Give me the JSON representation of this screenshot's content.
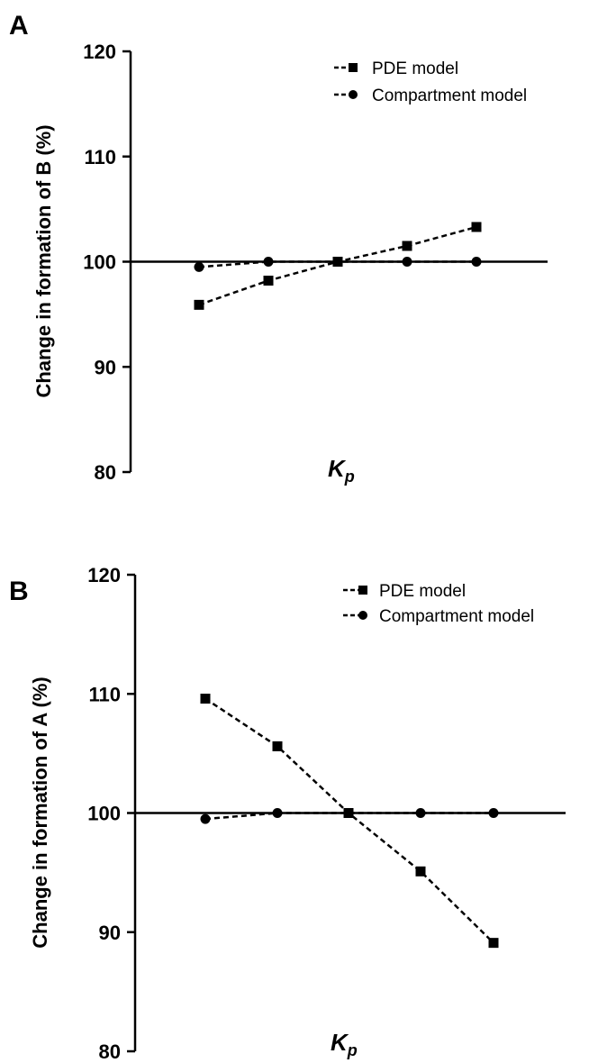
{
  "chart_data": [
    {
      "panel": "A",
      "type": "line",
      "ylabel": "Change in formation of B (%)",
      "xlabel_main": "K",
      "xlabel_sub": "p",
      "ylim": [
        80,
        120
      ],
      "yticks": [
        "80",
        "90",
        "100",
        "110",
        "120"
      ],
      "reference_line": 100,
      "legend_position": "top-right",
      "series": [
        {
          "name": "PDE model",
          "marker": "square",
          "values": [
            95.9,
            98.2,
            100.0,
            101.5,
            103.3
          ]
        },
        {
          "name": "Compartment model",
          "marker": "circle",
          "values": [
            99.5,
            100.0,
            100.0,
            100.0,
            100.0
          ]
        }
      ]
    },
    {
      "panel": "B",
      "type": "line",
      "ylabel": "Change in formation of A (%)",
      "xlabel_main": "K",
      "xlabel_sub": "p",
      "ylim": [
        80,
        120
      ],
      "yticks": [
        "80",
        "90",
        "100",
        "110",
        "120"
      ],
      "reference_line": 100,
      "legend_position": "top-right",
      "series": [
        {
          "name": "PDE model",
          "marker": "square",
          "values": [
            109.6,
            105.6,
            100.0,
            95.1,
            89.1
          ]
        },
        {
          "name": "Compartment model",
          "marker": "circle",
          "values": [
            99.5,
            100.0,
            100.0,
            100.0,
            100.0
          ]
        }
      ]
    }
  ]
}
